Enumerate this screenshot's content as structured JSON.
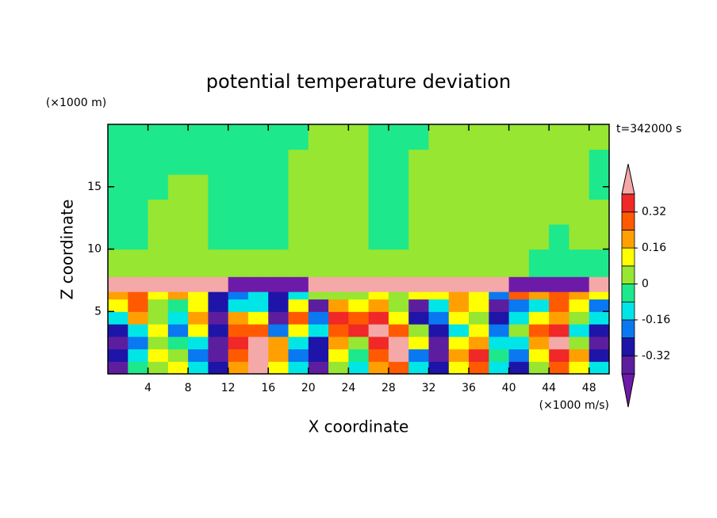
{
  "chart_data": {
    "type": "contour",
    "title": "potential temperature deviation",
    "xlabel": "X coordinate",
    "ylabel": "Z coordinate",
    "xunit": "(×1000 m/s)",
    "yunit": "(×1000 m)",
    "annotation": "t=342000 s",
    "xlim": [
      0,
      50
    ],
    "xticks": [
      4,
      8,
      12,
      16,
      20,
      24,
      28,
      32,
      36,
      40,
      44,
      48
    ],
    "ylim": [
      0,
      20
    ],
    "yticks": [
      5,
      10,
      15
    ],
    "x_edges": [
      0,
      2,
      4,
      6,
      8,
      10,
      12,
      14,
      16,
      18,
      20,
      22,
      24,
      26,
      28,
      30,
      32,
      34,
      36,
      38,
      40,
      42,
      44,
      46,
      48,
      50
    ],
    "z_edges": [
      0,
      1,
      2,
      3,
      4,
      5,
      6,
      6.6,
      7.8,
      10,
      12,
      14,
      16,
      18,
      20
    ],
    "levels": [
      -0.4,
      -0.32,
      -0.24,
      -0.16,
      -0.08,
      0,
      0.08,
      0.16,
      0.24,
      0.32,
      0.4
    ],
    "colors": [
      "#6e1aa8",
      "#5c1e9e",
      "#1e14a8",
      "#0a78f0",
      "#00e6e6",
      "#1ee88c",
      "#96e632",
      "#ffff00",
      "#ffa000",
      "#ff5a00",
      "#f02828",
      "#f4a8a8"
    ],
    "colorbar_ticks": [
      0.32,
      0.16,
      0,
      -0.16,
      -0.32
    ],
    "field": [
      [
        -0.36,
        -0.04,
        0.04,
        0.12,
        -0.12,
        -0.28,
        0.2,
        0.45,
        0.12,
        -0.12,
        -0.36,
        0.04,
        -0.12,
        0.2,
        0.28,
        -0.12,
        -0.28,
        0.12,
        0.28,
        -0.12,
        -0.28,
        0.04,
        0.28,
        0.12,
        -0.12
      ],
      [
        -0.28,
        -0.12,
        0.12,
        0.04,
        -0.2,
        -0.36,
        0.28,
        0.45,
        0.2,
        -0.2,
        -0.28,
        0.12,
        -0.04,
        0.28,
        0.45,
        -0.2,
        -0.36,
        0.2,
        0.36,
        -0.04,
        -0.2,
        0.12,
        0.36,
        0.2,
        -0.28
      ],
      [
        -0.36,
        -0.2,
        0.04,
        -0.04,
        -0.12,
        -0.36,
        0.36,
        0.45,
        0.2,
        -0.12,
        -0.28,
        0.2,
        0.04,
        0.36,
        0.45,
        0.12,
        -0.36,
        0.12,
        0.2,
        -0.12,
        -0.12,
        0.2,
        0.45,
        0.04,
        -0.36
      ],
      [
        -0.28,
        -0.12,
        0.12,
        -0.2,
        0.12,
        -0.28,
        0.28,
        0.28,
        -0.2,
        0.12,
        -0.12,
        0.28,
        0.36,
        0.45,
        0.28,
        0.04,
        -0.28,
        -0.12,
        0.12,
        -0.2,
        0.04,
        0.28,
        0.36,
        -0.12,
        -0.28
      ],
      [
        -0.12,
        0.2,
        0.04,
        -0.12,
        0.2,
        -0.36,
        0.2,
        0.12,
        -0.36,
        0.28,
        -0.2,
        0.36,
        0.28,
        0.36,
        0.12,
        -0.28,
        -0.2,
        0.12,
        0.04,
        -0.28,
        -0.12,
        0.12,
        0.2,
        0.04,
        -0.12
      ],
      [
        0.12,
        0.28,
        0.04,
        -0.04,
        0.12,
        -0.28,
        -0.12,
        -0.12,
        -0.28,
        0.12,
        -0.36,
        0.2,
        0.12,
        0.2,
        0.04,
        -0.36,
        -0.12,
        0.2,
        0.12,
        -0.36,
        -0.2,
        -0.12,
        0.28,
        0.12,
        -0.2
      ],
      [
        0.2,
        0.28,
        0.12,
        0.2,
        0.12,
        -0.28,
        -0.2,
        -0.12,
        -0.28,
        -0.12,
        0.04,
        0.04,
        0.04,
        0.12,
        0.04,
        0.12,
        0.12,
        0.2,
        0.12,
        -0.2,
        0.28,
        0.2,
        0.28,
        0.2,
        0.12
      ],
      [
        0.45,
        0.45,
        0.45,
        0.45,
        0.45,
        0.45,
        -0.45,
        -0.45,
        -0.45,
        -0.45,
        0.45,
        0.45,
        0.45,
        0.45,
        0.45,
        0.45,
        0.45,
        0.45,
        0.45,
        0.45,
        -0.45,
        -0.45,
        -0.45,
        -0.45,
        0.45
      ],
      [
        0.04,
        0.04,
        0.04,
        0.04,
        0.04,
        0.04,
        0.04,
        0.04,
        0.04,
        0.04,
        0.04,
        0.04,
        0.04,
        0.04,
        0.04,
        0.04,
        0.04,
        0.04,
        0.04,
        0.04,
        0.04,
        -0.04,
        -0.04,
        -0.04,
        -0.04
      ],
      [
        -0.04,
        -0.04,
        0.04,
        0.04,
        0.04,
        -0.04,
        -0.04,
        -0.04,
        -0.04,
        0.04,
        0.04,
        0.04,
        0.04,
        -0.04,
        -0.04,
        0.04,
        0.04,
        0.04,
        0.04,
        0.04,
        0.04,
        0.04,
        -0.04,
        0.04,
        0.04
      ],
      [
        -0.04,
        -0.04,
        0.04,
        0.04,
        0.04,
        -0.04,
        -0.04,
        -0.04,
        -0.04,
        0.04,
        0.04,
        0.04,
        0.04,
        -0.04,
        -0.04,
        0.04,
        0.04,
        0.04,
        0.04,
        0.04,
        0.04,
        0.04,
        0.04,
        0.04,
        0.04
      ],
      [
        -0.04,
        -0.04,
        -0.04,
        0.04,
        0.04,
        -0.04,
        -0.04,
        -0.04,
        -0.04,
        0.04,
        0.04,
        0.04,
        0.04,
        -0.04,
        -0.04,
        0.04,
        0.04,
        0.04,
        0.04,
        0.04,
        0.04,
        0.04,
        0.04,
        0.04,
        -0.04
      ],
      [
        -0.04,
        -0.04,
        -0.04,
        -0.04,
        -0.04,
        -0.04,
        -0.04,
        -0.04,
        -0.04,
        0.04,
        0.04,
        0.04,
        0.04,
        -0.04,
        -0.04,
        0.04,
        0.04,
        0.04,
        0.04,
        0.04,
        0.04,
        0.04,
        0.04,
        0.04,
        -0.04
      ],
      [
        -0.04,
        -0.04,
        -0.04,
        -0.04,
        -0.04,
        -0.04,
        -0.04,
        -0.04,
        -0.04,
        -0.04,
        0.04,
        0.04,
        0.04,
        -0.04,
        -0.04,
        -0.04,
        0.04,
        0.04,
        0.04,
        0.04,
        0.04,
        0.04,
        0.04,
        0.04,
        0.04
      ]
    ]
  }
}
